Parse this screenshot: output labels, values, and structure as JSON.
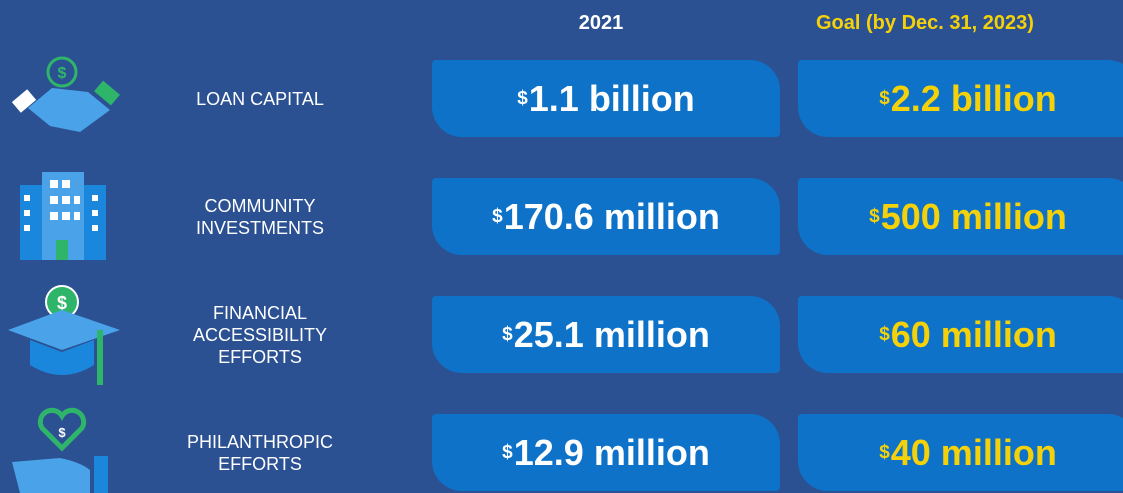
{
  "header": {
    "columns": [
      "2021",
      "Goal (by Dec. 31, 2023)"
    ]
  },
  "rows": [
    {
      "label": [
        "LOAN CAPITAL"
      ],
      "current": "$1.1 billion",
      "goal": "$2.2 billion"
    },
    {
      "label": [
        "COMMUNITY",
        "INVESTMENTS"
      ],
      "current": "$170.6 million",
      "goal": "$500 million"
    },
    {
      "label": [
        "FINANCIAL",
        "ACCESSIBILITY",
        "EFFORTS"
      ],
      "current": "$25.1 million",
      "goal": "$60 million"
    },
    {
      "label": [
        "PHILANTHROPIC",
        "EFFORTS"
      ],
      "current": "$12.9 million",
      "goal": "$40 million"
    }
  ]
}
